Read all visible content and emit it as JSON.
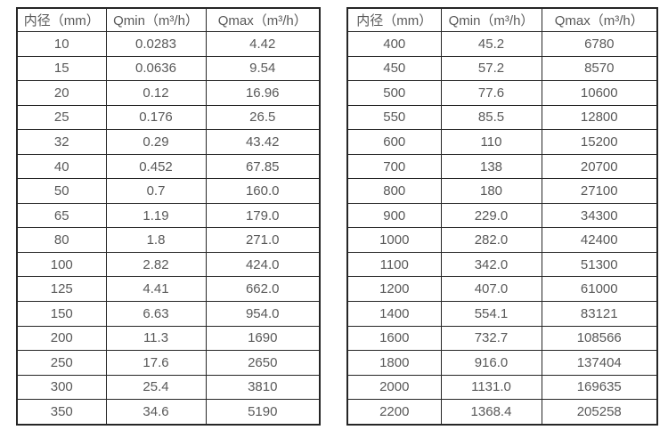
{
  "colors": {
    "border": "#262626",
    "text": "#595959",
    "background": "#ffffff"
  },
  "tables": [
    {
      "id": "flow-rate-table-small-diameters",
      "headers": [
        "内径（mm）",
        "Qmin（m³/h）",
        "Qmax（m³/h）"
      ],
      "rows": [
        [
          "10",
          "0.0283",
          "4.42"
        ],
        [
          "15",
          "0.0636",
          "9.54"
        ],
        [
          "20",
          "0.12",
          "16.96"
        ],
        [
          "25",
          "0.176",
          "26.5"
        ],
        [
          "32",
          "0.29",
          "43.42"
        ],
        [
          "40",
          "0.452",
          "67.85"
        ],
        [
          "50",
          "0.7",
          "160.0"
        ],
        [
          "65",
          "1.19",
          "179.0"
        ],
        [
          "80",
          "1.8",
          "271.0"
        ],
        [
          "100",
          "2.82",
          "424.0"
        ],
        [
          "125",
          "4.41",
          "662.0"
        ],
        [
          "150",
          "6.63",
          "954.0"
        ],
        [
          "200",
          "11.3",
          "1690"
        ],
        [
          "250",
          "17.6",
          "2650"
        ],
        [
          "300",
          "25.4",
          "3810"
        ],
        [
          "350",
          "34.6",
          "5190"
        ]
      ]
    },
    {
      "id": "flow-rate-table-large-diameters",
      "headers": [
        "内径（mm）",
        "Qmin（m³/h）",
        "Qmax（m³/h）"
      ],
      "rows": [
        [
          "400",
          "45.2",
          "6780"
        ],
        [
          "450",
          "57.2",
          "8570"
        ],
        [
          "500",
          "77.6",
          "10600"
        ],
        [
          "550",
          "85.5",
          "12800"
        ],
        [
          "600",
          "110",
          "15200"
        ],
        [
          "700",
          "138",
          "20700"
        ],
        [
          "800",
          "180",
          "27100"
        ],
        [
          "900",
          "229.0",
          "34300"
        ],
        [
          "1000",
          "282.0",
          "42400"
        ],
        [
          "1100",
          "342.0",
          "51300"
        ],
        [
          "1200",
          "407.0",
          "61000"
        ],
        [
          "1400",
          "554.1",
          "83121"
        ],
        [
          "1600",
          "732.7",
          "108566"
        ],
        [
          "1800",
          "916.0",
          "137404"
        ],
        [
          "2000",
          "1131.0",
          "169635"
        ],
        [
          "2200",
          "1368.4",
          "205258"
        ]
      ]
    }
  ]
}
